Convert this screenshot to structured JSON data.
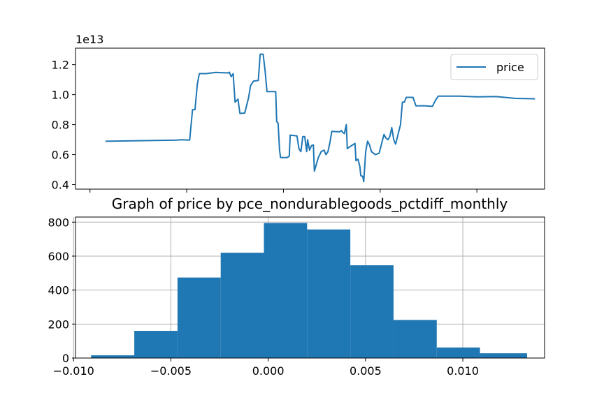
{
  "chart_data": [
    {
      "type": "line",
      "title": "",
      "xlabel": "",
      "ylabel": "",
      "y_offset_label": "1e13",
      "y_scale": 10000000000000.0,
      "ylim": [
        0.37,
        1.31
      ],
      "xlim": [
        -0.15,
        4.7
      ],
      "yticks": [
        "0.4",
        "0.6",
        "0.8",
        "1.0",
        "1.2"
      ],
      "ytick_values": [
        0.4,
        0.6,
        0.8,
        1.0,
        1.2
      ],
      "xtick_values": [
        0,
        1,
        2,
        3,
        4
      ],
      "xtick_labels": [],
      "legend": {
        "position": "top-right"
      },
      "color": "#1f77b4",
      "series": [
        {
          "name": "price",
          "points": [
            [
              0.16,
              0.689
            ],
            [
              0.9,
              0.697
            ],
            [
              0.95,
              0.699
            ],
            [
              1.03,
              0.697
            ],
            [
              1.06,
              0.9
            ],
            [
              1.085,
              0.9
            ],
            [
              1.11,
              1.07
            ],
            [
              1.13,
              1.14
            ],
            [
              1.2,
              1.14
            ],
            [
              1.3,
              1.148
            ],
            [
              1.38,
              1.146
            ],
            [
              1.43,
              1.145
            ],
            [
              1.44,
              1.15
            ],
            [
              1.46,
              1.12
            ],
            [
              1.48,
              1.14
            ],
            [
              1.5,
              0.95
            ],
            [
              1.53,
              0.97
            ],
            [
              1.55,
              0.875
            ],
            [
              1.6,
              0.877
            ],
            [
              1.64,
              0.98
            ],
            [
              1.66,
              1.06
            ],
            [
              1.69,
              1.09
            ],
            [
              1.74,
              1.095
            ],
            [
              1.76,
              1.27
            ],
            [
              1.79,
              1.27
            ],
            [
              1.81,
              1.16
            ],
            [
              1.83,
              1.02
            ],
            [
              1.92,
              1.02
            ],
            [
              1.93,
              0.82
            ],
            [
              1.945,
              0.81
            ],
            [
              1.96,
              0.63
            ],
            [
              1.97,
              0.581
            ],
            [
              2.04,
              0.581
            ],
            [
              2.06,
              0.59
            ],
            [
              2.07,
              0.73
            ],
            [
              2.14,
              0.725
            ],
            [
              2.16,
              0.64
            ],
            [
              2.18,
              0.62
            ],
            [
              2.2,
              0.72
            ],
            [
              2.22,
              0.72
            ],
            [
              2.24,
              0.62
            ],
            [
              2.25,
              0.7
            ],
            [
              2.27,
              0.63
            ],
            [
              2.29,
              0.66
            ],
            [
              2.31,
              0.665
            ],
            [
              2.32,
              0.49
            ],
            [
              2.36,
              0.58
            ],
            [
              2.39,
              0.62
            ],
            [
              2.42,
              0.63
            ],
            [
              2.44,
              0.6
            ],
            [
              2.46,
              0.62
            ],
            [
              2.48,
              0.68
            ],
            [
              2.5,
              0.755
            ],
            [
              2.58,
              0.752
            ],
            [
              2.6,
              0.76
            ],
            [
              2.61,
              0.75
            ],
            [
              2.63,
              0.74
            ],
            [
              2.65,
              0.8
            ],
            [
              2.66,
              0.64
            ],
            [
              2.68,
              0.65
            ],
            [
              2.74,
              0.675
            ],
            [
              2.75,
              0.56
            ],
            [
              2.77,
              0.57
            ],
            [
              2.79,
              0.52
            ],
            [
              2.8,
              0.46
            ],
            [
              2.82,
              0.455
            ],
            [
              2.83,
              0.42
            ],
            [
              2.85,
              0.62
            ],
            [
              2.87,
              0.69
            ],
            [
              2.89,
              0.665
            ],
            [
              2.91,
              0.62
            ],
            [
              2.95,
              0.6
            ],
            [
              2.99,
              0.61
            ],
            [
              3.04,
              0.735
            ],
            [
              3.06,
              0.71
            ],
            [
              3.08,
              0.7
            ],
            [
              3.1,
              0.72
            ],
            [
              3.12,
              0.78
            ],
            [
              3.14,
              0.7
            ],
            [
              3.16,
              0.67
            ],
            [
              3.21,
              0.8
            ],
            [
              3.23,
              0.95
            ],
            [
              3.25,
              0.95
            ],
            [
              3.27,
              0.982
            ],
            [
              3.34,
              0.982
            ],
            [
              3.37,
              0.925
            ],
            [
              3.45,
              0.926
            ],
            [
              3.54,
              0.922
            ],
            [
              3.57,
              0.96
            ],
            [
              3.6,
              0.99
            ],
            [
              3.82,
              0.99
            ],
            [
              4.0,
              0.985
            ],
            [
              4.2,
              0.987
            ],
            [
              4.4,
              0.975
            ],
            [
              4.6,
              0.972
            ]
          ]
        }
      ]
    },
    {
      "type": "bar",
      "title": "Graph of price by pce_nondurablegoods_pctdiff_monthly",
      "xlabel": "",
      "ylabel": "",
      "xlim": [
        -0.0099,
        0.0142
      ],
      "ylim": [
        0,
        830
      ],
      "xticks": [
        "−0.010",
        "−0.005",
        "0.000",
        "0.005",
        "0.010"
      ],
      "xtick_values": [
        -0.01,
        -0.005,
        0.0,
        0.005,
        0.01
      ],
      "yticks": [
        "0",
        "200",
        "400",
        "600",
        "800"
      ],
      "ytick_values": [
        0,
        200,
        400,
        600,
        800
      ],
      "grid": true,
      "color": "#1f77b4",
      "bins": [
        {
          "x0": -0.0091,
          "x1": -0.00688,
          "value": 16
        },
        {
          "x0": -0.00688,
          "x1": -0.00466,
          "value": 160
        },
        {
          "x0": -0.00466,
          "x1": -0.00244,
          "value": 474
        },
        {
          "x0": -0.00244,
          "x1": -0.00022,
          "value": 620
        },
        {
          "x0": -0.00022,
          "x1": 0.002,
          "value": 795
        },
        {
          "x0": 0.002,
          "x1": 0.00422,
          "value": 757
        },
        {
          "x0": 0.00422,
          "x1": 0.00644,
          "value": 546
        },
        {
          "x0": 0.00644,
          "x1": 0.00866,
          "value": 224
        },
        {
          "x0": 0.00866,
          "x1": 0.01088,
          "value": 62
        },
        {
          "x0": 0.01088,
          "x1": 0.0133,
          "value": 28
        }
      ]
    }
  ]
}
